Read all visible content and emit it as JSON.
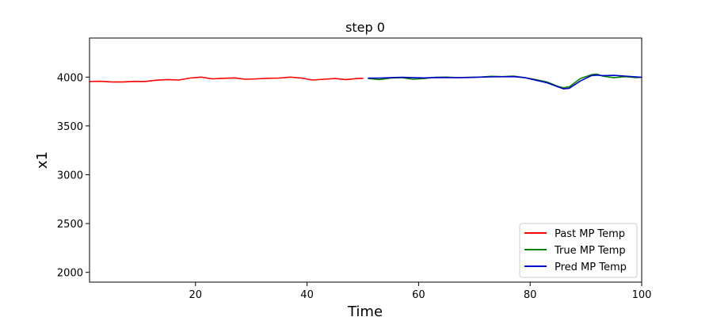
{
  "chart_data": {
    "type": "line",
    "title": "step 0",
    "xlabel": "Time",
    "ylabel": "x1",
    "xlim": [
      1,
      100
    ],
    "ylim": [
      1900,
      4400
    ],
    "xticks": [
      20,
      40,
      60,
      80,
      100
    ],
    "yticks": [
      2000,
      2500,
      3000,
      3500,
      4000
    ],
    "grid": false,
    "legend_position": "bottom-right",
    "series": [
      {
        "name": "Past MP Temp",
        "color": "#ff0000",
        "x": [
          1,
          3,
          5,
          7,
          9,
          11,
          13,
          15,
          17,
          19,
          21,
          23,
          25,
          27,
          29,
          31,
          33,
          35,
          37,
          39,
          41,
          43,
          45,
          47,
          49,
          50
        ],
        "y": [
          3955,
          3957,
          3950,
          3950,
          3956,
          3955,
          3968,
          3975,
          3970,
          3990,
          4000,
          3982,
          3988,
          3992,
          3978,
          3982,
          3988,
          3990,
          4000,
          3990,
          3970,
          3978,
          3985,
          3975,
          3985,
          3988
        ]
      },
      {
        "name": "True MP Temp",
        "color": "#008000",
        "x": [
          51,
          53,
          55,
          57,
          59,
          61,
          63,
          65,
          67,
          69,
          71,
          73,
          75,
          77,
          79,
          81,
          83,
          85,
          86,
          87,
          89,
          91,
          92,
          93,
          95,
          97,
          99,
          100
        ],
        "y": [
          3985,
          3975,
          3990,
          3995,
          3978,
          3985,
          3998,
          4000,
          3995,
          3998,
          4000,
          4008,
          4005,
          4010,
          3995,
          3975,
          3950,
          3905,
          3890,
          3900,
          3985,
          4025,
          4030,
          4010,
          3995,
          4005,
          3995,
          3998
        ]
      },
      {
        "name": "Pred MP Temp",
        "color": "#0000cc",
        "x": [
          51,
          53,
          55,
          57,
          59,
          61,
          63,
          65,
          67,
          69,
          71,
          73,
          75,
          77,
          79,
          81,
          83,
          85,
          86,
          87,
          89,
          91,
          92,
          93,
          95,
          97,
          99,
          100
        ],
        "y": [
          3990,
          3990,
          3995,
          3998,
          3995,
          3992,
          3996,
          3995,
          3994,
          3996,
          4000,
          4002,
          4004,
          4005,
          3995,
          3968,
          3942,
          3900,
          3880,
          3885,
          3960,
          4015,
          4020,
          4015,
          4018,
          4010,
          4002,
          3998
        ]
      }
    ]
  }
}
